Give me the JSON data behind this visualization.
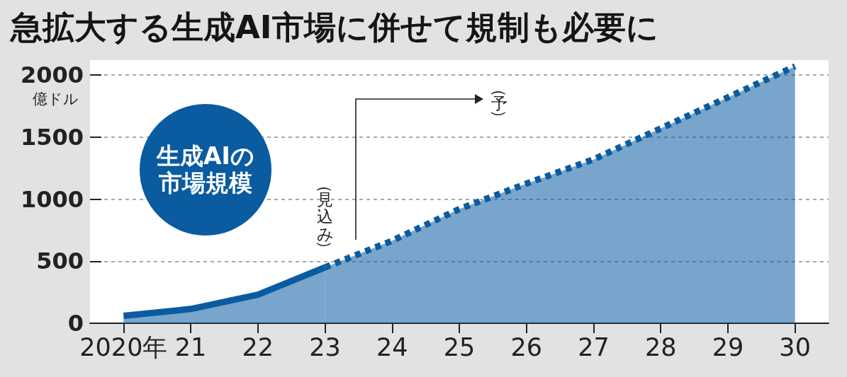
{
  "chart_data": {
    "type": "area",
    "title": "急拡大する生成AI市場に併せて規制も必要に",
    "ylabel": "億ドル",
    "categories": [
      "2020年",
      "21",
      "22",
      "23",
      "24",
      "25",
      "26",
      "27",
      "28",
      "29",
      "30"
    ],
    "series": [
      {
        "color": "#0a5ba0",
        "line_style": "solid",
        "values": [
          60,
          115,
          230,
          450,
          null,
          null,
          null,
          null,
          null,
          null,
          null
        ]
      },
      {
        "color": "#0a5ba0",
        "line_style": "dotted",
        "values": [
          null,
          null,
          null,
          450,
          665,
          920,
          1125,
          1320,
          1570,
          1820,
          2070
        ]
      }
    ],
    "ylim": [
      0,
      2120
    ],
    "yticks": [
      0,
      500,
      1000,
      1500,
      2000
    ],
    "grid": "y",
    "marker": "none",
    "annotations": [
      "生成AIの市場規模",
      "（見込み）",
      "（予）"
    ]
  }
}
